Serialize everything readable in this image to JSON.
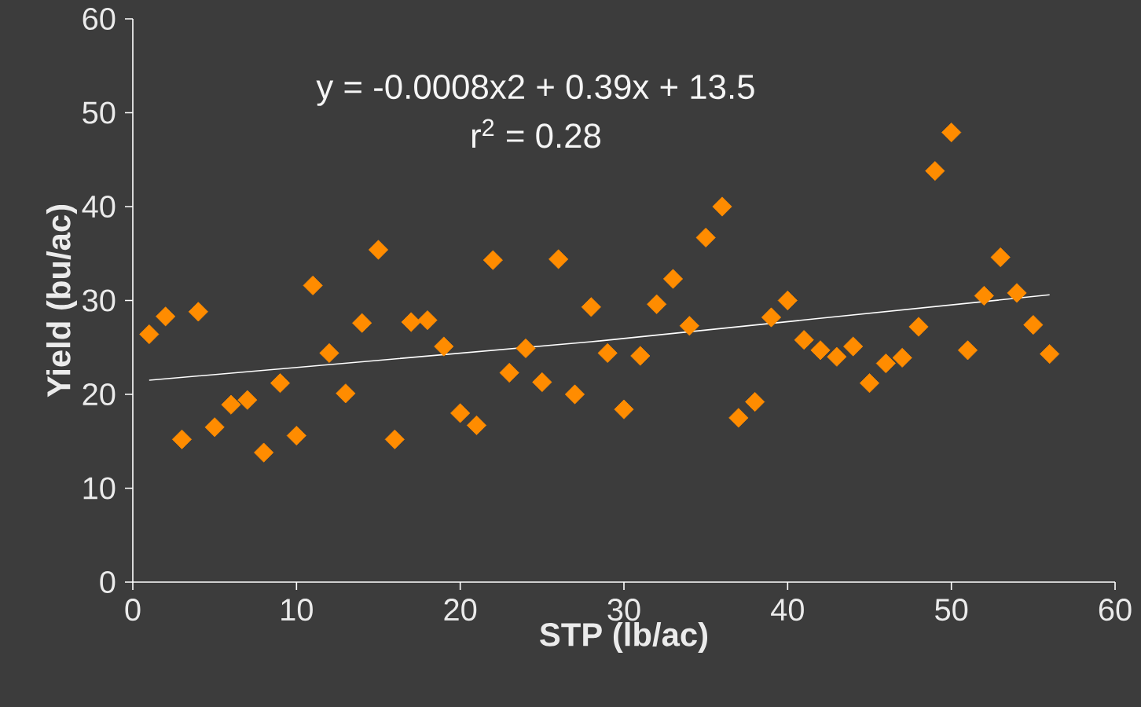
{
  "chart_data": {
    "type": "scatter",
    "xlabel": "STP (lb/ac)",
    "ylabel": "Yield (bu/ac)",
    "xlim": [
      0,
      60
    ],
    "ylim": [
      0,
      60
    ],
    "xticks": [
      0,
      10,
      20,
      30,
      40,
      50,
      60
    ],
    "yticks": [
      0,
      10,
      20,
      30,
      40,
      50,
      60
    ],
    "annotations": [
      "y = -0.0008x2 + 0.39x + 13.5",
      "r$^{2}$ = 0.28"
    ],
    "series": [
      {
        "marker": "diamond",
        "color": "#ff8c00",
        "x": [
          1,
          2,
          3,
          4,
          5,
          6,
          7,
          8,
          9,
          10,
          11,
          12,
          13,
          14,
          15,
          16,
          17,
          18,
          19,
          20,
          21,
          22,
          23,
          24,
          25,
          26,
          27,
          28,
          29,
          30,
          31,
          32,
          33,
          34,
          35,
          36,
          37,
          38,
          39,
          40,
          41,
          42,
          43,
          44,
          45,
          46,
          47,
          48,
          49,
          50,
          51,
          52,
          53,
          54,
          55,
          56
        ],
        "values": [
          26.4,
          28.3,
          15.2,
          28.8,
          16.5,
          18.9,
          19.4,
          13.8,
          21.2,
          15.6,
          31.6,
          24.4,
          20.1,
          27.6,
          35.4,
          15.2,
          27.7,
          27.9,
          25.1,
          18.0,
          16.7,
          34.3,
          22.3,
          24.9,
          21.3,
          34.4,
          20.0,
          29.3,
          24.4,
          18.4,
          24.1,
          29.6,
          32.3,
          27.3,
          36.7,
          40.0,
          17.5,
          19.2,
          28.2,
          30.0,
          25.8,
          24.7,
          24.0,
          25.1,
          21.2,
          23.3,
          23.9,
          27.2,
          43.8,
          47.9,
          24.7,
          30.5,
          34.6,
          30.8,
          27.4,
          24.3
        ]
      },
      {
        "type": "line",
        "marker": "none",
        "color": "#ffffff",
        "x": [
          1,
          28,
          56
        ],
        "values": [
          21.5,
          25.6,
          30.6
        ]
      }
    ]
  }
}
